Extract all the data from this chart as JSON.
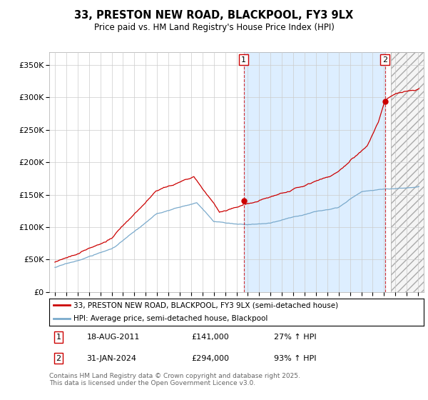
{
  "title": "33, PRESTON NEW ROAD, BLACKPOOL, FY3 9LX",
  "subtitle": "Price paid vs. HM Land Registry's House Price Index (HPI)",
  "ylabel_ticks": [
    "£0",
    "£50K",
    "£100K",
    "£150K",
    "£200K",
    "£250K",
    "£300K",
    "£350K"
  ],
  "ytick_values": [
    0,
    50000,
    100000,
    150000,
    200000,
    250000,
    300000,
    350000
  ],
  "ylim": [
    0,
    370000
  ],
  "xlim_start": 1994.5,
  "xlim_end": 2027.5,
  "xticks": [
    1995,
    1996,
    1997,
    1998,
    1999,
    2000,
    2001,
    2002,
    2003,
    2004,
    2005,
    2006,
    2007,
    2008,
    2009,
    2010,
    2011,
    2012,
    2013,
    2014,
    2015,
    2016,
    2017,
    2018,
    2019,
    2020,
    2021,
    2022,
    2023,
    2024,
    2025,
    2026,
    2027
  ],
  "red_line_color": "#cc0000",
  "blue_line_color": "#7aaacc",
  "shade_color": "#ddeeff",
  "sale1_year": 2011.63,
  "sale1_price": 141000,
  "sale2_year": 2024.08,
  "sale2_price": 294000,
  "legend_red_label": "33, PRESTON NEW ROAD, BLACKPOOL, FY3 9LX (semi-detached house)",
  "legend_blue_label": "HPI: Average price, semi-detached house, Blackpool",
  "note1_label": "1",
  "note1_date": "18-AUG-2011",
  "note1_price": "£141,000",
  "note1_hpi": "27% ↑ HPI",
  "note2_label": "2",
  "note2_date": "31-JAN-2024",
  "note2_price": "£294,000",
  "note2_hpi": "93% ↑ HPI",
  "footer": "Contains HM Land Registry data © Crown copyright and database right 2025.\nThis data is licensed under the Open Government Licence v3.0.",
  "background_color": "#ffffff",
  "grid_color": "#cccccc",
  "hash_start": 2024.58,
  "hash_end": 2027.5
}
